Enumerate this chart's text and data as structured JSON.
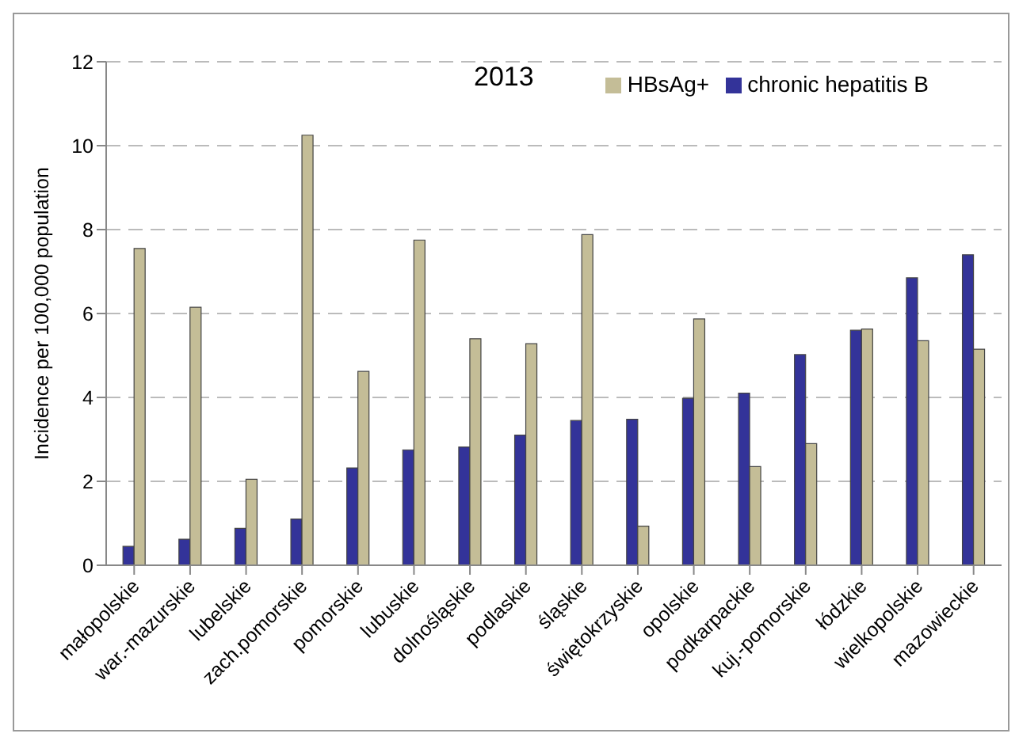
{
  "chart_data": {
    "type": "bar",
    "title": "2013",
    "ylabel": "Incidence per 100,000 population",
    "categories": [
      "małopolskie",
      "war.-mazurskie",
      "lubelskie",
      "zach.pomorskie",
      "pomorskie",
      "lubuskie",
      "dolnośląskie",
      "podlaskie",
      "śląskie",
      "świętokrzyskie",
      "opolskie",
      "podkarpackie",
      "kuj.-pomorskie",
      "łódzkie",
      "wielkopolskie",
      "mazowieckie"
    ],
    "series": [
      {
        "name": "chronic hepatitis B",
        "color": "#333399",
        "values": [
          0.45,
          0.62,
          0.88,
          1.1,
          2.32,
          2.75,
          2.82,
          3.1,
          3.45,
          3.48,
          3.98,
          4.1,
          5.02,
          5.6,
          6.85,
          7.4
        ]
      },
      {
        "name": "HBsAg+",
        "color": "#c4bd97",
        "values": [
          7.55,
          6.15,
          2.05,
          10.25,
          4.62,
          7.75,
          5.4,
          5.28,
          7.88,
          0.93,
          5.87,
          2.35,
          2.9,
          5.63,
          5.35,
          5.15
        ]
      }
    ],
    "ylim": [
      0,
      12
    ],
    "yticks": [
      0,
      2,
      4,
      6,
      8,
      10,
      12
    ],
    "grid": "y",
    "legend": "top right"
  }
}
